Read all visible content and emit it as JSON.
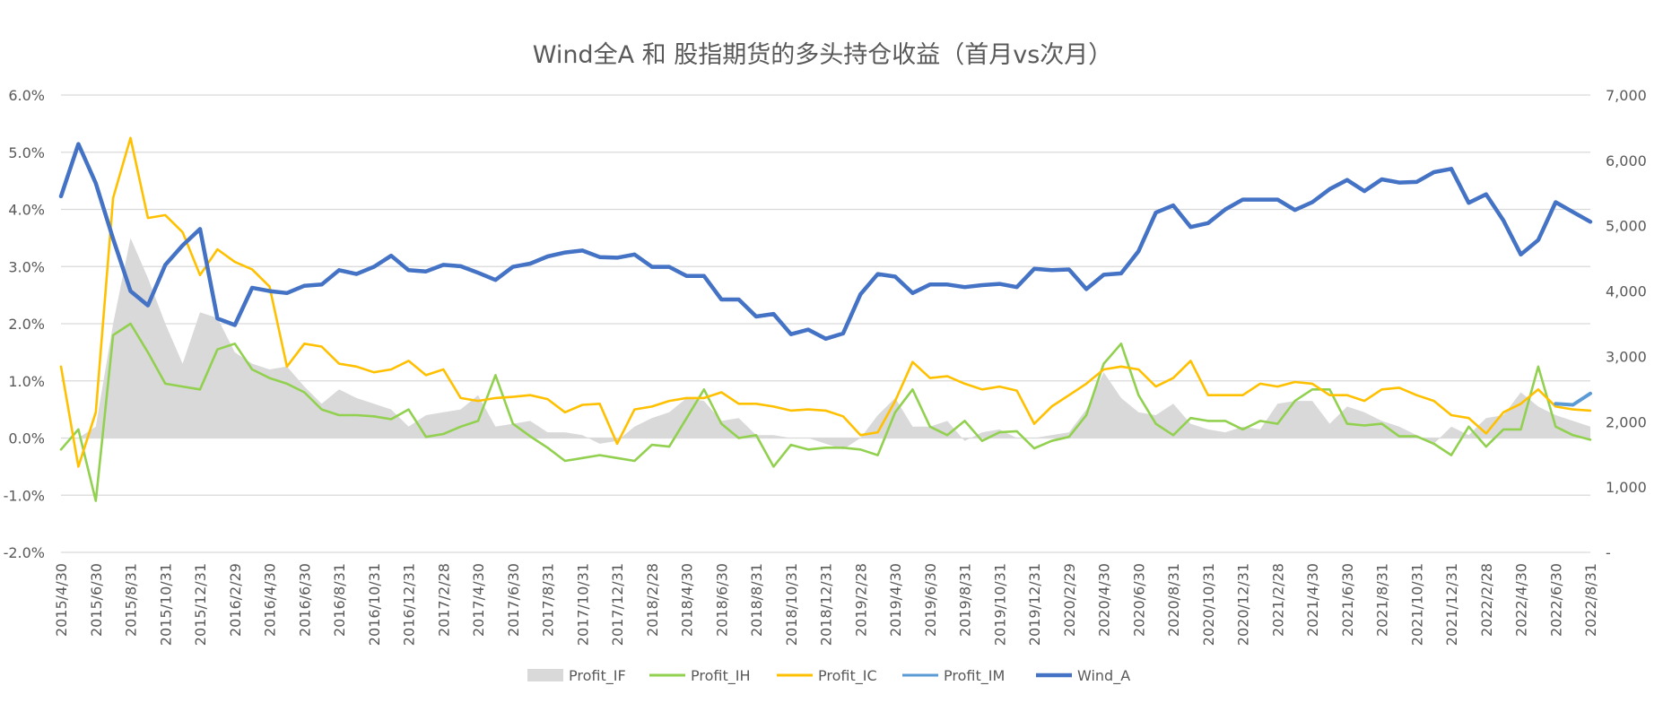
{
  "chart_data": {
    "type": "line",
    "title": "Wind全A 和 股指期货的多头持仓收益（首月vs次月）",
    "y_left": {
      "min": -0.02,
      "max": 0.06,
      "ticks": [
        "-2.0%",
        "-1.0%",
        "0.0%",
        "1.0%",
        "2.0%",
        "3.0%",
        "4.0%",
        "5.0%",
        "6.0%"
      ]
    },
    "y_right": {
      "min": 0,
      "max": 7000,
      "ticks": [
        "-",
        "1,000",
        "2,000",
        "3,000",
        "4,000",
        "5,000",
        "6,000",
        "7,000"
      ]
    },
    "x_labels": [
      "2015/4/30",
      "2015/6/30",
      "2015/8/31",
      "2015/10/31",
      "2015/12/31",
      "2016/2/29",
      "2016/4/30",
      "2016/6/30",
      "2016/8/31",
      "2016/10/31",
      "2016/12/31",
      "2017/2/28",
      "2017/4/30",
      "2017/6/30",
      "2017/8/31",
      "2017/10/31",
      "2017/12/31",
      "2018/2/28",
      "2018/4/30",
      "2018/6/30",
      "2018/8/31",
      "2018/10/31",
      "2018/12/31",
      "2019/2/28",
      "2019/4/30",
      "2019/6/30",
      "2019/8/31",
      "2019/10/31",
      "2019/12/31",
      "2020/2/29",
      "2020/4/30",
      "2020/6/30",
      "2020/8/31",
      "2020/10/31",
      "2020/12/31",
      "2021/2/28",
      "2021/4/30",
      "2021/6/30",
      "2021/8/31",
      "2021/10/31",
      "2021/12/31",
      "2022/2/28",
      "2022/4/30",
      "2022/6/30",
      "2022/8/31"
    ],
    "grid": true,
    "legend_position": "bottom",
    "series": [
      {
        "name": "Profit_IF",
        "type": "area",
        "axis": "left",
        "color": "#d9d9d9",
        "values": [
          0.0,
          0.0,
          0.002,
          0.02,
          0.035,
          0.028,
          0.02,
          0.013,
          0.022,
          0.021,
          0.015,
          0.013,
          0.012,
          0.0125,
          0.009,
          0.006,
          0.0085,
          0.007,
          0.006,
          0.005,
          0.002,
          0.004,
          0.0045,
          0.005,
          0.0075,
          0.002,
          0.0025,
          0.003,
          0.001,
          0.001,
          0.0005,
          -0.001,
          -0.0005,
          0.002,
          0.0035,
          0.0045,
          0.007,
          0.0065,
          0.003,
          0.0035,
          0.0005,
          0.0005,
          0.0,
          0.0,
          -0.001,
          -0.002,
          0.0,
          0.004,
          0.007,
          0.002,
          0.002,
          0.003,
          -0.0005,
          0.001,
          0.0015,
          0.0,
          0.0,
          0.0005,
          0.001,
          0.005,
          0.0115,
          0.007,
          0.0045,
          0.004,
          0.006,
          0.0025,
          0.0015,
          0.001,
          0.002,
          0.0015,
          0.006,
          0.0065,
          0.0065,
          0.0025,
          0.0055,
          0.0045,
          0.003,
          0.002,
          0.0005,
          -0.001,
          0.002,
          0.0005,
          0.0035,
          0.004,
          0.008,
          0.0055,
          0.004,
          0.003,
          0.002
        ]
      },
      {
        "name": "Profit_IH",
        "type": "line",
        "axis": "left",
        "color": "#92d050",
        "values": [
          -0.002,
          0.0015,
          -0.011,
          0.018,
          0.02,
          0.015,
          0.0095,
          0.009,
          0.0085,
          0.0155,
          0.0165,
          0.012,
          0.0105,
          0.0095,
          0.008,
          0.005,
          0.004,
          0.004,
          0.0038,
          0.0033,
          0.005,
          0.0002,
          0.0007,
          0.002,
          0.003,
          0.011,
          0.0025,
          0.0003,
          -0.0017,
          -0.004,
          -0.0035,
          -0.003,
          -0.0035,
          -0.004,
          -0.0012,
          -0.0015,
          0.0035,
          0.0085,
          0.0025,
          0.0,
          0.0005,
          -0.005,
          -0.0012,
          -0.002,
          -0.0017,
          -0.0017,
          -0.002,
          -0.003,
          0.0045,
          0.0085,
          0.002,
          0.0005,
          0.003,
          -0.0005,
          0.001,
          0.0012,
          -0.0018,
          -0.0005,
          0.0002,
          0.004,
          0.013,
          0.0165,
          0.0075,
          0.0025,
          0.0005,
          0.0035,
          0.003,
          0.003,
          0.0015,
          0.003,
          0.0025,
          0.0065,
          0.0085,
          0.0085,
          0.0025,
          0.0022,
          0.0025,
          0.0003,
          0.0003,
          -0.001,
          -0.003,
          0.002,
          -0.0015,
          0.0015,
          0.0015,
          0.0125,
          0.002,
          0.0005,
          -0.0003
        ]
      },
      {
        "name": "Profit_IC",
        "type": "line",
        "axis": "left",
        "color": "#ffc000",
        "values": [
          0.0125,
          -0.005,
          0.0045,
          0.042,
          0.0525,
          0.0385,
          0.039,
          0.036,
          0.0285,
          0.033,
          0.0308,
          0.0295,
          0.0265,
          0.0125,
          0.0165,
          0.016,
          0.013,
          0.0125,
          0.0115,
          0.012,
          0.0135,
          0.011,
          0.012,
          0.007,
          0.0065,
          0.007,
          0.0072,
          0.0075,
          0.0068,
          0.0045,
          0.0058,
          0.006,
          -0.001,
          0.005,
          0.0055,
          0.0065,
          0.007,
          0.007,
          0.008,
          0.006,
          0.006,
          0.0055,
          0.0048,
          0.005,
          0.0048,
          0.0038,
          0.0005,
          0.001,
          0.0065,
          0.0133,
          0.0105,
          0.0108,
          0.0095,
          0.0085,
          0.009,
          0.0083,
          0.0025,
          0.0055,
          0.0075,
          0.0095,
          0.012,
          0.0125,
          0.012,
          0.009,
          0.0105,
          0.0135,
          0.0075,
          0.0075,
          0.0075,
          0.0095,
          0.009,
          0.0098,
          0.0095,
          0.0075,
          0.0075,
          0.0065,
          0.0085,
          0.0088,
          0.0075,
          0.0065,
          0.004,
          0.0035,
          0.0008,
          0.0045,
          0.006,
          0.0085,
          0.0055,
          0.005,
          0.0048
        ]
      },
      {
        "name": "Profit_IM",
        "type": "line",
        "axis": "left",
        "color": "#5b9bd5",
        "values": [
          null,
          null,
          null,
          null,
          null,
          null,
          null,
          null,
          null,
          null,
          null,
          null,
          null,
          null,
          null,
          null,
          null,
          null,
          null,
          null,
          null,
          null,
          null,
          null,
          null,
          null,
          null,
          null,
          null,
          null,
          null,
          null,
          null,
          null,
          null,
          null,
          null,
          null,
          null,
          null,
          null,
          null,
          null,
          null,
          null,
          null,
          null,
          null,
          null,
          null,
          null,
          null,
          null,
          null,
          null,
          null,
          null,
          null,
          null,
          null,
          null,
          null,
          null,
          null,
          null,
          null,
          null,
          null,
          null,
          null,
          null,
          null,
          null,
          null,
          null,
          null,
          null,
          null,
          null,
          null,
          null,
          null,
          null,
          null,
          null,
          null,
          0.006,
          0.0058,
          0.0078
        ]
      },
      {
        "name": "Wind_A",
        "type": "line",
        "axis": "right",
        "color": "#4472c4",
        "values": [
          5450,
          6250,
          5650,
          4800,
          4000,
          3780,
          4400,
          4700,
          4950,
          3580,
          3480,
          4050,
          4000,
          3970,
          4080,
          4100,
          4320,
          4260,
          4370,
          4540,
          4320,
          4300,
          4400,
          4380,
          4280,
          4170,
          4370,
          4420,
          4530,
          4590,
          4620,
          4520,
          4510,
          4560,
          4370,
          4370,
          4230,
          4230,
          3870,
          3870,
          3610,
          3650,
          3340,
          3410,
          3270,
          3350,
          3950,
          4260,
          4220,
          3970,
          4100,
          4100,
          4060,
          4090,
          4110,
          4060,
          4340,
          4320,
          4330,
          4030,
          4250,
          4270,
          4610,
          5200,
          5310,
          4980,
          5040,
          5250,
          5400,
          5400,
          5400,
          5240,
          5360,
          5560,
          5700,
          5530,
          5710,
          5660,
          5670,
          5820,
          5870,
          5350,
          5480,
          5080,
          4560,
          4780,
          5360,
          5210,
          5060
        ]
      }
    ]
  }
}
